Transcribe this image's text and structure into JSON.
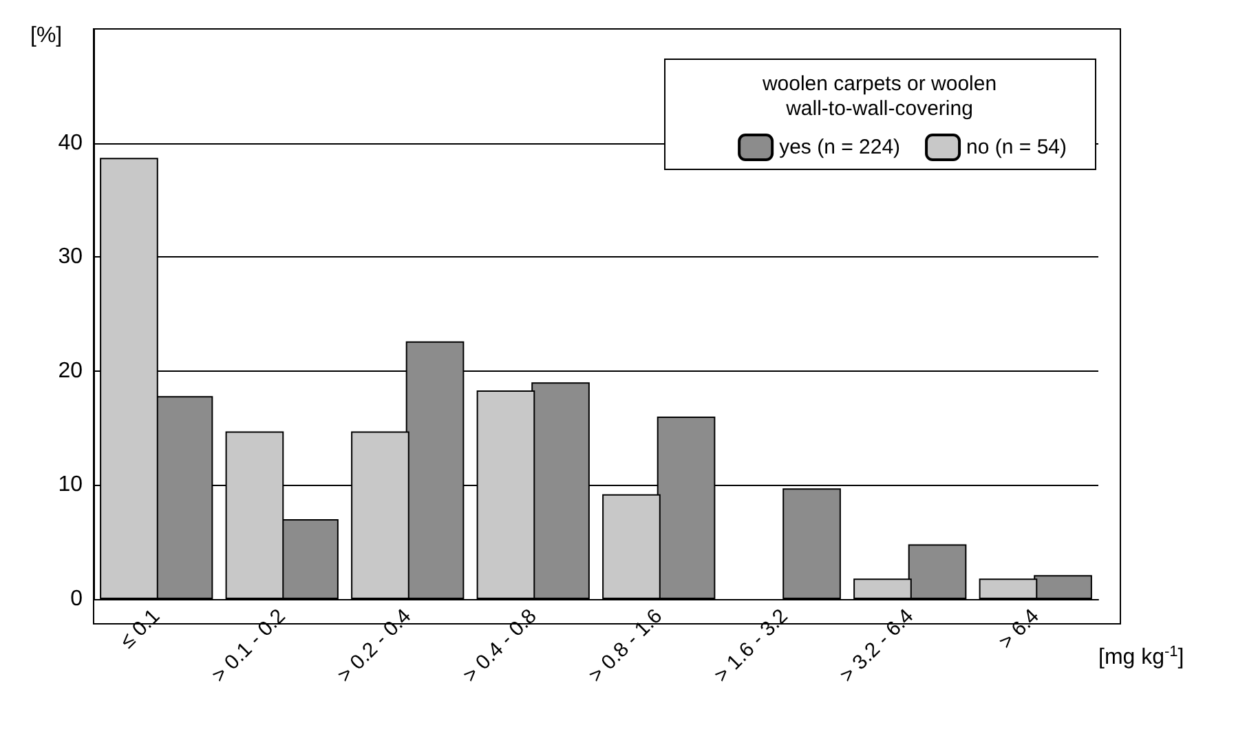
{
  "chart_data": {
    "type": "bar",
    "ylabel": "[%]",
    "xlabel": "[mg kg$^{-1}$]",
    "legend_title": "woolen carpets or woolen\nwall-to-wall-covering",
    "categories": [
      "≤ 0.1",
      "> 0.1 - 0.2",
      "> 0.2 - 0.4",
      "> 0.4 - 0.8",
      "> 0.8 - 1.6",
      "> 1.6 - 3.2",
      "> 3.2 - 6.4",
      "> 6.4"
    ],
    "series": [
      {
        "name": "no (n = 54)",
        "color": "#c8c8c8",
        "values": [
          38.7,
          14.7,
          14.7,
          18.3,
          9.2,
          0,
          1.8,
          1.8
        ]
      },
      {
        "name": "yes (n = 224)",
        "color": "#8c8c8c",
        "values": [
          17.8,
          7.0,
          22.6,
          19.0,
          16.0,
          9.7,
          4.8,
          2.1
        ]
      }
    ],
    "ylim": [
      0,
      50
    ],
    "yticks": [
      0,
      10,
      20,
      30,
      40
    ],
    "grid": "y",
    "legend": "top right"
  }
}
